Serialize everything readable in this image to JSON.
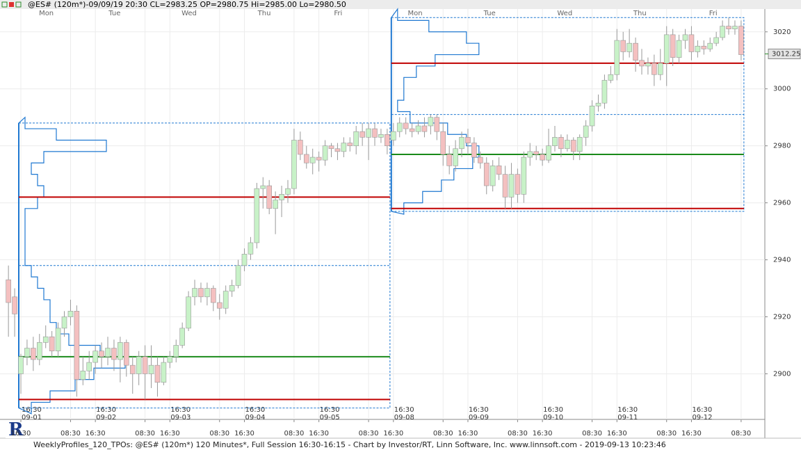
{
  "chart_data": {
    "type": "candlestick",
    "title": "@ES# (120m*)-09/09/19 20:30 CL=2983.25 OP=2980.75 Hi=2985.00 Lo=2980.50",
    "footer": "WeeklyProfiles_120_TPOs: @ES# (120m*) 120 Minutes*, Full Session 16:30-16:15 - Chart by Investor/RT, Linn Software, Inc. www.linnsoft.com - 2019-09-13 10:23:46",
    "categories": [
      null,
      null,
      "16:30",
      null,
      null,
      null,
      null,
      null,
      null,
      null,
      "08:30",
      null,
      null,
      null,
      "16:30",
      null,
      null,
      null,
      null,
      null,
      null,
      null,
      "08:30",
      null,
      null,
      null,
      "16:30",
      null,
      null,
      null,
      null,
      null,
      null,
      null,
      "08:30",
      null,
      null,
      null,
      "16:30",
      null,
      null,
      null,
      null,
      null,
      null,
      null,
      "08:30",
      null,
      null,
      null,
      "16:30",
      null,
      null,
      null,
      null,
      null,
      null,
      null,
      "08:30",
      null,
      null,
      null,
      "16:30",
      null,
      null,
      null,
      null,
      null,
      null,
      null,
      "08:30",
      null,
      null,
      null,
      "16:30",
      null,
      null,
      null,
      null,
      null,
      null,
      null,
      "08:30",
      null,
      null,
      null,
      "16:30",
      null,
      null,
      null,
      null,
      null,
      null,
      null,
      "08:30",
      null,
      null,
      null,
      "16:30",
      null,
      null,
      null,
      null,
      null,
      null,
      null,
      "08:30",
      null,
      null,
      null,
      "16:30",
      null,
      null,
      null,
      null,
      null,
      null,
      null,
      "08:30"
    ],
    "dates": [
      null,
      null,
      "09-01",
      null,
      null,
      null,
      null,
      null,
      null,
      null,
      null,
      null,
      null,
      null,
      "09-02",
      null,
      null,
      null,
      null,
      null,
      null,
      null,
      null,
      null,
      null,
      null,
      "09-03",
      null,
      null,
      null,
      null,
      null,
      null,
      null,
      null,
      null,
      null,
      null,
      "09-04",
      null,
      null,
      null,
      null,
      null,
      null,
      null,
      null,
      null,
      null,
      null,
      "09-05",
      null,
      null,
      null,
      null,
      null,
      null,
      null,
      null,
      null,
      null,
      null,
      "09-08",
      null,
      null,
      null,
      null,
      null,
      null,
      null,
      null,
      null,
      null,
      null,
      "09-09",
      null,
      null,
      null,
      null,
      null,
      null,
      null,
      null,
      null,
      null,
      null,
      "09-10",
      null,
      null,
      null,
      null,
      null,
      null,
      null,
      null,
      null,
      null,
      null,
      "09-11",
      null,
      null,
      null,
      null,
      null,
      null,
      null,
      null,
      null,
      null,
      null,
      "09-12",
      null,
      null,
      null,
      null,
      null,
      null,
      null,
      null
    ],
    "x2ticks": [
      {
        "value": 6.1,
        "label": "Mon"
      },
      {
        "value": 17.1,
        "label": "Tue"
      },
      {
        "value": 29.1,
        "label": "Wed"
      },
      {
        "value": 41.2,
        "label": "Thu"
      },
      {
        "value": 53.1,
        "label": "Fri"
      },
      {
        "value": 65.5,
        "label": "Mon"
      },
      {
        "value": 77.5,
        "label": "Tue"
      },
      {
        "value": 89.6,
        "label": "Wed"
      },
      {
        "value": 101.7,
        "label": "Thu"
      },
      {
        "value": 113.5,
        "label": "Fri"
      }
    ],
    "open": [
      2933,
      2927,
      2900,
      2906,
      2909,
      2905,
      2911,
      2913,
      2908,
      2916,
      2920,
      2922,
      2898,
      2901,
      2904,
      2908,
      2906,
      2909,
      2905,
      2911,
      2903,
      2900,
      2906,
      2900,
      2903,
      2897,
      2904,
      2906,
      2910,
      2916,
      2927,
      2930,
      2927,
      2930,
      2925,
      2923,
      2929,
      2931,
      2938,
      2942,
      2946,
      2965,
      2966,
      2958,
      2961,
      2963,
      2965,
      2982,
      2977,
      2974,
      2976,
      2975,
      2980,
      2979,
      2978,
      2981,
      2980,
      2985,
      2983,
      2986,
      2983,
      2984,
      2982,
      2985,
      2988,
      2986,
      2985,
      2987,
      2987,
      2990,
      2985,
      2977,
      2973,
      2979,
      2983,
      2981,
      2976,
      2974,
      2966,
      2973,
      2970,
      2962,
      2970,
      2963,
      2976,
      2978,
      2977,
      2975,
      2980,
      2983,
      2979,
      2982,
      2978,
      2983,
      2987,
      2994,
      2995,
      3003,
      3005,
      3017,
      3013,
      3016,
      3010,
      3008,
      3009,
      3005,
      3009,
      3019,
      3011,
      3017,
      3019,
      3013,
      3015,
      3014,
      3016,
      3018,
      3022,
      3021,
      3022
    ],
    "high": [
      2938,
      2930,
      2907,
      2912,
      2913,
      2914,
      2917,
      2915,
      2918,
      2922,
      2926,
      2924,
      2906,
      2908,
      2910,
      2911,
      2913,
      2912,
      2913,
      2912,
      2906,
      2908,
      2910,
      2910,
      2906,
      2906,
      2908,
      2912,
      2918,
      2929,
      2933,
      2932,
      2932,
      2931,
      2928,
      2931,
      2933,
      2940,
      2944,
      2948,
      2967,
      2969,
      2968,
      2964,
      2966,
      2968,
      2986,
      2985,
      2980,
      2979,
      2978,
      2982,
      2981,
      2981,
      2983,
      2983,
      2987,
      2988,
      2988,
      2988,
      2986,
      2986,
      2988,
      2990,
      2990,
      2988,
      2989,
      2990,
      2991,
      2991,
      2988,
      2980,
      2982,
      2985,
      2986,
      2983,
      2978,
      2976,
      2975,
      2976,
      2973,
      2974,
      2972,
      2978,
      2981,
      2980,
      2979,
      2986,
      2987,
      2984,
      2984,
      2983,
      2984,
      2989,
      2996,
      2998,
      3005,
      3008,
      3021,
      3020,
      3021,
      3018,
      3014,
      3011,
      3012,
      3014,
      3022,
      3021,
      3019,
      3021,
      3022,
      3017,
      3017,
      3018,
      3020,
      3024,
      3025,
      3024,
      3024
    ],
    "low": [
      2913,
      2913,
      2893,
      2903,
      2901,
      2903,
      2909,
      2906,
      2906,
      2913,
      2917,
      2892,
      2896,
      2898,
      2900,
      2902,
      2903,
      2901,
      2897,
      2899,
      2893,
      2896,
      2891,
      2895,
      2892,
      2896,
      2902,
      2904,
      2909,
      2915,
      2924,
      2925,
      2924,
      2922,
      2919,
      2921,
      2927,
      2930,
      2936,
      2940,
      2944,
      2958,
      2956,
      2949,
      2955,
      2960,
      2963,
      2975,
      2972,
      2970,
      2971,
      2973,
      2976,
      2975,
      2976,
      2978,
      2977,
      2980,
      2975,
      2980,
      2981,
      2977,
      2980,
      2983,
      2984,
      2983,
      2984,
      2983,
      2984,
      2982,
      2973,
      2970,
      2971,
      2976,
      2977,
      2974,
      2972,
      2963,
      2964,
      2968,
      2958,
      2958,
      2960,
      2960,
      2973,
      2975,
      2973,
      2974,
      2978,
      2976,
      2978,
      2975,
      2975,
      2980,
      2985,
      2992,
      2993,
      3002,
      3003,
      3010,
      3011,
      3006,
      3005,
      3005,
      3001,
      3003,
      3001,
      3008,
      3009,
      3014,
      3010,
      3011,
      3012,
      3013,
      3015,
      3017,
      3019,
      3019,
      3010
    ],
    "close": [
      2925,
      2921,
      2906,
      2909,
      2905,
      2911,
      2913,
      2908,
      2916,
      2920,
      2922,
      2898,
      2901,
      2904,
      2908,
      2906,
      2909,
      2905,
      2911,
      2903,
      2900,
      2906,
      2900,
      2903,
      2897,
      2904,
      2906,
      2910,
      2916,
      2927,
      2930,
      2927,
      2930,
      2925,
      2923,
      2929,
      2931,
      2938,
      2942,
      2946,
      2965,
      2966,
      2958,
      2961,
      2963,
      2965,
      2982,
      2977,
      2974,
      2976,
      2975,
      2980,
      2979,
      2978,
      2981,
      2980,
      2985,
      2983,
      2986,
      2983,
      2984,
      2980,
      2985,
      2988,
      2986,
      2985,
      2987,
      2985,
      2990,
      2985,
      2977,
      2973,
      2979,
      2983,
      2981,
      2976,
      2974,
      2966,
      2973,
      2970,
      2962,
      2970,
      2963,
      2976,
      2978,
      2977,
      2975,
      2980,
      2983,
      2979,
      2982,
      2978,
      2983,
      2987,
      2994,
      2995,
      3003,
      3005,
      3017,
      3013,
      3016,
      3010,
      3008,
      3009,
      3005,
      3009,
      3019,
      3011,
      3017,
      3019,
      3013,
      3015,
      3014,
      3016,
      3018,
      3022,
      3021,
      3022,
      3012
    ],
    "up_color": "#c8f2c8",
    "down_color": "#f4c0c0",
    "wick_color": "#999999",
    "profile_color": "#1f78d1",
    "profiles": [
      {
        "start": 2,
        "end": 61,
        "high": 2988,
        "low": 2888,
        "value_area_high": 2938,
        "levels": [
          2888,
          2892,
          2896,
          2900,
          2904,
          2908,
          2912,
          2916,
          2920,
          2924,
          2928,
          2932,
          2936,
          2940,
          2944,
          2948,
          2952,
          2956,
          2960,
          2964,
          2968,
          2972,
          2976,
          2980,
          2984,
          2988
        ],
        "counts": [
          2,
          5,
          9,
          12,
          17,
          13,
          8,
          6,
          5,
          5,
          4,
          3,
          2,
          1,
          1,
          1,
          1,
          1,
          3,
          4,
          3,
          2,
          4,
          14,
          6,
          1
        ],
        "lines": [
          {
            "price": 2962,
            "color": "#c00000"
          },
          {
            "price": 2891,
            "color": "#c00000"
          },
          {
            "price": 2906,
            "color": "#1a8a1a"
          }
        ]
      },
      {
        "start": 62,
        "end": 118,
        "high": 3025,
        "low": 2957,
        "value_area_high": 2991,
        "levels": [
          2958,
          2962,
          2966,
          2970,
          2974,
          2978,
          2982,
          2986,
          2990,
          2994,
          2998,
          3002,
          3006,
          3010,
          3014,
          3018,
          3022,
          3026
        ],
        "counts": [
          2,
          5,
          8,
          10,
          13,
          14,
          12,
          9,
          3,
          1,
          2,
          2,
          4,
          7,
          14,
          12,
          6,
          1
        ],
        "lines": [
          {
            "price": 3009,
            "color": "#c00000"
          },
          {
            "price": 2958,
            "color": "#c00000"
          },
          {
            "price": 2977,
            "color": "#1a8a1a"
          }
        ]
      }
    ],
    "last_price": 3012.25,
    "ylim": [
      2884,
      3028
    ],
    "yticks": [
      2900,
      2920,
      2940,
      2960,
      2980,
      3000,
      3020
    ],
    "grid": true
  }
}
